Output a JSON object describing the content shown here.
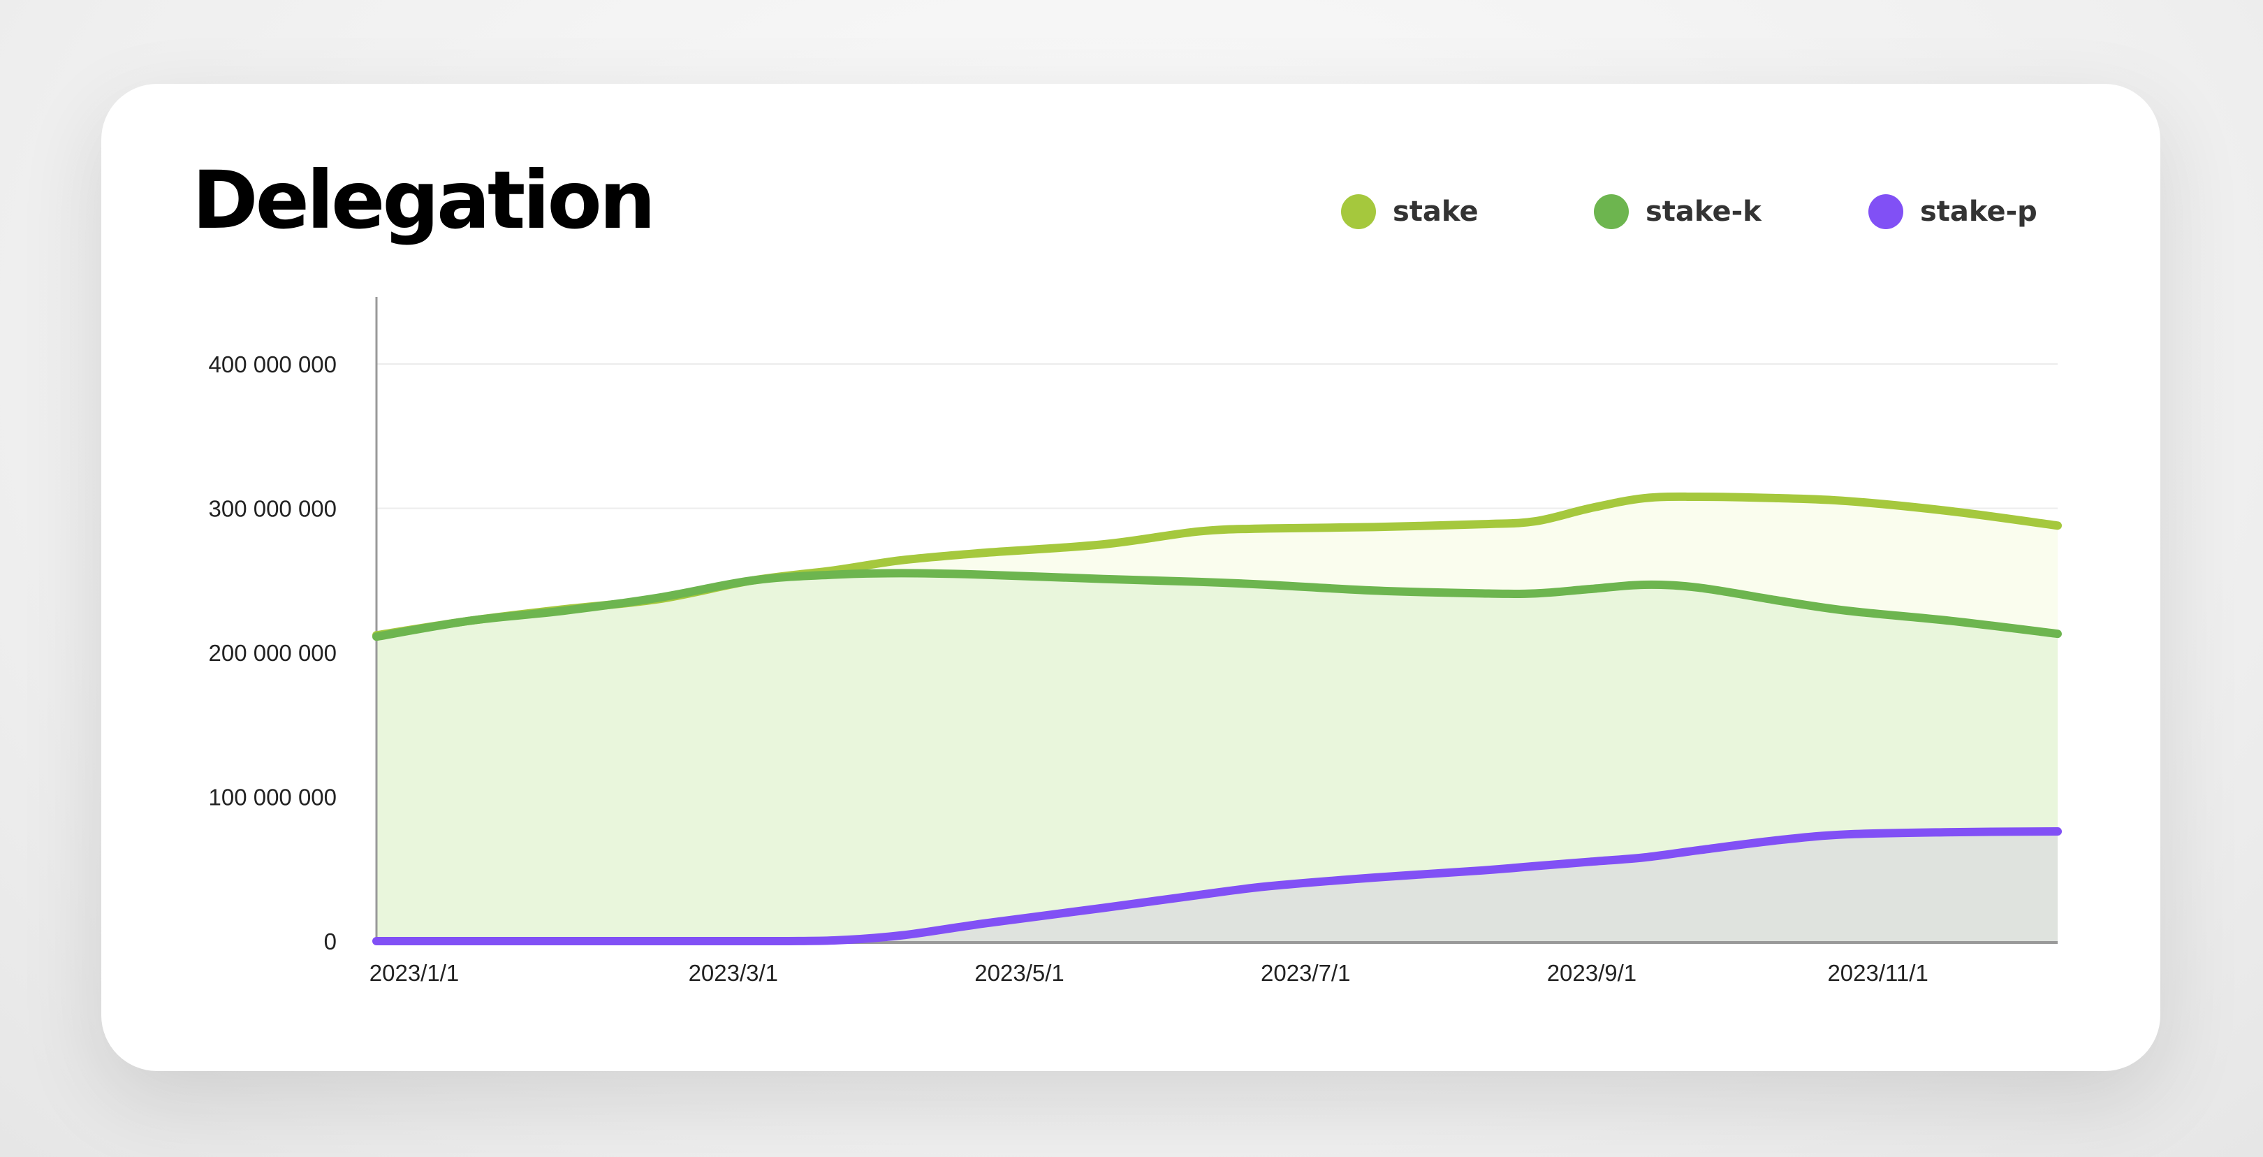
{
  "title": "Delegation",
  "legend": [
    {
      "label": "stake",
      "color": "#a5c83d"
    },
    {
      "label": "stake-k",
      "color": "#6db54f"
    },
    {
      "label": "stake-p",
      "color": "#8150f5"
    }
  ],
  "chart_data": {
    "type": "area",
    "title": "Delegation",
    "xlabel": "",
    "ylabel": "",
    "x_unit": "months since 2023/1/1",
    "xlim": [
      0,
      11.75
    ],
    "ylim": [
      0,
      400000000
    ],
    "grid": true,
    "legend_position": "top-right",
    "x_ticks": [
      {
        "x": 0,
        "label": "2023/1/1"
      },
      {
        "x": 2.23,
        "label": "2023/3/1"
      },
      {
        "x": 4.23,
        "label": "2023/5/1"
      },
      {
        "x": 6.23,
        "label": "2023/7/1"
      },
      {
        "x": 8.23,
        "label": "2023/9/1"
      },
      {
        "x": 10.23,
        "label": "2023/11/1"
      }
    ],
    "y_ticks": [
      {
        "y": 0,
        "label": "0"
      },
      {
        "y": 100000000,
        "label": "100 000 000"
      },
      {
        "y": 200000000,
        "label": "200 000 000"
      },
      {
        "y": 300000000,
        "label": "300 000 000"
      },
      {
        "y": 400000000,
        "label": "400 000 000"
      }
    ],
    "x": [
      0,
      0.65,
      1.31,
      1.97,
      2.63,
      3.2,
      3.67,
      4.23,
      5.08,
      5.75,
      6.23,
      6.97,
      7.73,
      8.1,
      8.48,
      8.86,
      9.24,
      9.8,
      10.28,
      11.0,
      11.75
    ],
    "series": [
      {
        "name": "stake",
        "color": "#a5c83d",
        "fill": "#fafdee",
        "values": [
          212,
          222,
          230,
          237,
          250,
          257,
          264,
          269,
          275,
          284,
          286,
          287,
          289,
          291,
          300,
          307,
          308,
          307,
          305,
          298,
          288
        ]
      },
      {
        "name": "stake-k",
        "color": "#6db54f",
        "fill": "#e9f6dc",
        "values": [
          211,
          222,
          229,
          238,
          250,
          254,
          255,
          254,
          251,
          249,
          247,
          243,
          241,
          241,
          244,
          247,
          245,
          236,
          229,
          222,
          213
        ]
      },
      {
        "name": "stake-p",
        "color": "#8150f5",
        "fill": "#dfe3de",
        "values": [
          0,
          0,
          0,
          0,
          0,
          0.5,
          4,
          12,
          23,
          32,
          38,
          44,
          49,
          52,
          55,
          58,
          63,
          70,
          74,
          75.5,
          76
        ]
      }
    ],
    "value_scale": 1000000
  }
}
